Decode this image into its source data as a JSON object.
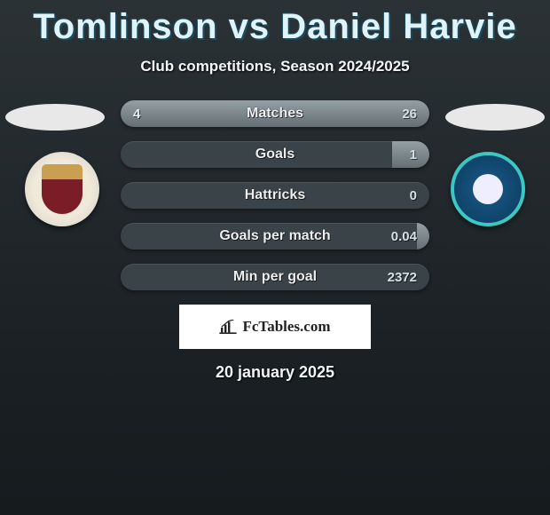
{
  "title": "Tomlinson vs Daniel Harvie",
  "subtitle": "Club competitions, Season 2024/2025",
  "date": "20 january 2025",
  "brand": "FcTables.com",
  "colors": {
    "title": "#dff3f9",
    "bar_track": "#3a4347",
    "bar_fill_top": "#95a0a6",
    "bar_fill_bottom": "#646e73",
    "background_top": "#2b3236",
    "background_bottom": "#161b1e"
  },
  "stats": [
    {
      "label": "Matches",
      "left_val": "4",
      "right_val": "26",
      "left_pct": 8,
      "right_pct": 92
    },
    {
      "label": "Goals",
      "left_val": "",
      "right_val": "1",
      "left_pct": 0,
      "right_pct": 12
    },
    {
      "label": "Hattricks",
      "left_val": "",
      "right_val": "0",
      "left_pct": 0,
      "right_pct": 0
    },
    {
      "label": "Goals per match",
      "left_val": "",
      "right_val": "0.04",
      "left_pct": 0,
      "right_pct": 4
    },
    {
      "label": "Min per goal",
      "left_val": "",
      "right_val": "2372",
      "left_pct": 0,
      "right_pct": 0
    }
  ],
  "players": {
    "left": {
      "team_crest_primary": "#7a1d26",
      "team_crest_secondary": "#c8a050"
    },
    "right": {
      "team_crest_primary": "#0b3a5c",
      "team_crest_ring": "#3bc7c2"
    }
  }
}
